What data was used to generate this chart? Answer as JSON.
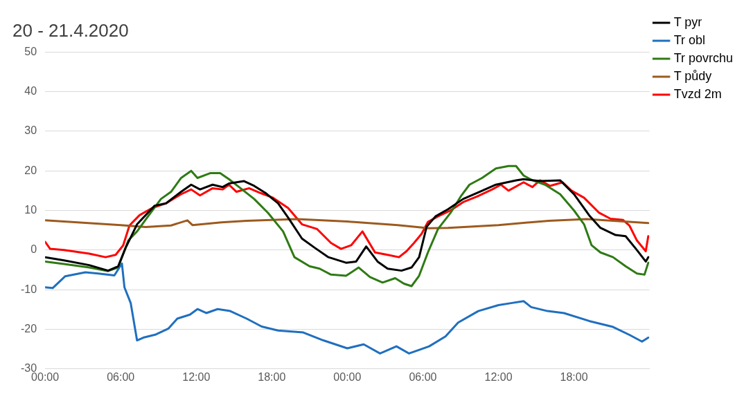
{
  "chart_data": {
    "type": "line",
    "title": "20 - 21.4.2020",
    "xlim": [
      "2020-04-20T00:00",
      "2020-04-22T00:00"
    ],
    "xticks": [
      {
        "value": "2020-04-20T00:00",
        "label": "00:00"
      },
      {
        "value": "2020-04-20T06:00",
        "label": "06:00"
      },
      {
        "value": "2020-04-20T12:00",
        "label": "12:00"
      },
      {
        "value": "2020-04-20T18:00",
        "label": "18:00"
      },
      {
        "value": "2020-04-21T00:00",
        "label": "00:00"
      },
      {
        "value": "2020-04-21T06:00",
        "label": "06:00"
      },
      {
        "value": "2020-04-21T12:00",
        "label": "12:00"
      },
      {
        "value": "2020-04-21T18:00",
        "label": "18:00"
      }
    ],
    "ylim": [
      -30,
      50
    ],
    "yticks": [
      -30,
      -20,
      -10,
      0,
      10,
      20,
      30,
      40,
      50
    ],
    "grid": "y",
    "legend": "right",
    "marker": "none",
    "line_style": "solid",
    "series": [
      {
        "name": "T pyr",
        "color": "#000000",
        "x": [
          "2020-04-20T00:00",
          "2020-04-20T01:30",
          "2020-04-20T03:30",
          "2020-04-20T05:00",
          "2020-04-20T05:48",
          "2020-04-20T06:24",
          "2020-04-20T07:18",
          "2020-04-20T08:42",
          "2020-04-20T09:36",
          "2020-04-20T10:48",
          "2020-04-20T11:36",
          "2020-04-20T12:18",
          "2020-04-20T13:18",
          "2020-04-20T14:06",
          "2020-04-20T14:36",
          "2020-04-20T15:48",
          "2020-04-20T16:36",
          "2020-04-20T17:30",
          "2020-04-20T18:30",
          "2020-04-20T19:18",
          "2020-04-20T20:24",
          "2020-04-20T21:24",
          "2020-04-20T22:30",
          "2020-04-20T23:54",
          "2020-04-21T00:42",
          "2020-04-21T01:30",
          "2020-04-21T02:24",
          "2020-04-21T03:12",
          "2020-04-21T04:18",
          "2020-04-21T05:06",
          "2020-04-21T05:42",
          "2020-04-21T06:18",
          "2020-04-21T07:00",
          "2020-04-21T08:00",
          "2020-04-21T09:12",
          "2020-04-21T10:30",
          "2020-04-21T11:48",
          "2020-04-21T13:24",
          "2020-04-21T14:00",
          "2020-04-21T15:18",
          "2020-04-21T16:54",
          "2020-04-21T18:00",
          "2020-04-21T19:12",
          "2020-04-21T20:06",
          "2020-04-21T21:18",
          "2020-04-21T22:06",
          "2020-04-21T23:00",
          "2020-04-21T23:42",
          "2020-04-21T23:54"
        ],
        "values": [
          -1.8,
          -2.6,
          -3.8,
          -5.2,
          -4.1,
          0.6,
          6.5,
          11.2,
          11.8,
          14.7,
          16.5,
          15.3,
          16.5,
          15.9,
          16.8,
          17.4,
          16.2,
          14.4,
          11.8,
          8.2,
          2.9,
          0.6,
          -1.8,
          -3.2,
          -2.9,
          0.9,
          -2.9,
          -4.7,
          -5.2,
          -4.4,
          -1.8,
          5.9,
          8.5,
          10.3,
          12.9,
          14.7,
          16.5,
          17.6,
          17.9,
          17.4,
          17.6,
          14.1,
          8.8,
          5.6,
          3.8,
          3.5,
          0,
          -2.9,
          -1.8
        ]
      },
      {
        "name": "Tr obl",
        "color": "#1f6fbf",
        "x": [
          "2020-04-20T00:00",
          "2020-04-20T00:36",
          "2020-04-20T01:36",
          "2020-04-20T03:12",
          "2020-04-20T04:12",
          "2020-04-20T05:30",
          "2020-04-20T06:06",
          "2020-04-20T06:18",
          "2020-04-20T06:48",
          "2020-04-20T07:18",
          "2020-04-20T07:48",
          "2020-04-20T08:48",
          "2020-04-20T09:48",
          "2020-04-20T10:30",
          "2020-04-20T11:30",
          "2020-04-20T12:06",
          "2020-04-20T12:48",
          "2020-04-20T13:42",
          "2020-04-20T14:42",
          "2020-04-20T16:00",
          "2020-04-20T17:12",
          "2020-04-20T18:30",
          "2020-04-20T20:30",
          "2020-04-20T22:06",
          "2020-04-21T00:00",
          "2020-04-21T01:18",
          "2020-04-21T02:36",
          "2020-04-21T03:54",
          "2020-04-21T04:54",
          "2020-04-21T06:30",
          "2020-04-21T07:48",
          "2020-04-21T08:48",
          "2020-04-21T10:24",
          "2020-04-21T12:00",
          "2020-04-21T13:00",
          "2020-04-21T14:00",
          "2020-04-21T14:36",
          "2020-04-21T15:54",
          "2020-04-21T17:12",
          "2020-04-21T19:12",
          "2020-04-21T21:06",
          "2020-04-21T22:24",
          "2020-04-21T23:24",
          "2020-04-21T23:54"
        ],
        "values": [
          -9.4,
          -9.6,
          -6.6,
          -5.6,
          -5.9,
          -6.4,
          -3.4,
          -9.4,
          -13.4,
          -22.8,
          -22.1,
          -21.3,
          -19.8,
          -17.3,
          -16.3,
          -14.9,
          -15.9,
          -14.9,
          -15.4,
          -17.3,
          -19.3,
          -20.3,
          -20.8,
          -22.8,
          -24.8,
          -23.8,
          -26.1,
          -24.3,
          -26.1,
          -24.3,
          -21.8,
          -18.3,
          -15.4,
          -13.9,
          -13.4,
          -12.9,
          -14.4,
          -15.4,
          -15.9,
          -17.9,
          -19.4,
          -21.4,
          -23.1,
          -22.1
        ]
      },
      {
        "name": "Tr povrchu",
        "color": "#2e7a14",
        "x": [
          "2020-04-20T00:00",
          "2020-04-20T01:30",
          "2020-04-20T03:30",
          "2020-04-20T05:00",
          "2020-04-20T05:48",
          "2020-04-20T06:36",
          "2020-04-20T07:18",
          "2020-04-20T08:06",
          "2020-04-20T09:12",
          "2020-04-20T10:00",
          "2020-04-20T10:48",
          "2020-04-20T11:36",
          "2020-04-20T12:06",
          "2020-04-20T13:06",
          "2020-04-20T13:54",
          "2020-04-20T14:36",
          "2020-04-20T15:24",
          "2020-04-20T16:36",
          "2020-04-20T17:42",
          "2020-04-20T18:54",
          "2020-04-20T19:48",
          "2020-04-20T21:00",
          "2020-04-20T21:48",
          "2020-04-20T22:42",
          "2020-04-20T23:54",
          "2020-04-21T00:54",
          "2020-04-21T01:48",
          "2020-04-21T02:48",
          "2020-04-21T03:48",
          "2020-04-21T04:30",
          "2020-04-21T05:06",
          "2020-04-21T05:42",
          "2020-04-21T06:24",
          "2020-04-21T07:12",
          "2020-04-21T08:12",
          "2020-04-21T09:00",
          "2020-04-21T09:42",
          "2020-04-21T10:42",
          "2020-04-21T11:48",
          "2020-04-21T12:48",
          "2020-04-21T13:24",
          "2020-04-21T14:00",
          "2020-04-21T14:42",
          "2020-04-21T15:42",
          "2020-04-21T16:54",
          "2020-04-21T18:00",
          "2020-04-21T18:48",
          "2020-04-21T19:24",
          "2020-04-21T20:06",
          "2020-04-21T21:06",
          "2020-04-21T22:06",
          "2020-04-21T23:00",
          "2020-04-21T23:36",
          "2020-04-21T23:54"
        ],
        "values": [
          -2.9,
          -3.5,
          -4.4,
          -5.3,
          -4.4,
          2.4,
          4.7,
          8.2,
          12.9,
          14.7,
          18.2,
          20,
          18.2,
          19.4,
          19.4,
          17.9,
          15.9,
          12.9,
          9.4,
          4.7,
          -1.8,
          -4.1,
          -4.7,
          -6.2,
          -6.5,
          -4.4,
          -6.8,
          -8.2,
          -7.1,
          -8.5,
          -9.1,
          -6.5,
          -0.6,
          5.3,
          9.4,
          13.5,
          16.5,
          18.2,
          20.6,
          21.2,
          21.2,
          18.8,
          17.6,
          16.5,
          14.1,
          10,
          6.5,
          1.2,
          -0.6,
          -1.8,
          -4.1,
          -5.9,
          -6.2,
          -3.2
        ]
      },
      {
        "name": "T půdy",
        "color": "#9c5a1e",
        "x": [
          "2020-04-20T00:00",
          "2020-04-20T03:00",
          "2020-04-20T06:00",
          "2020-04-20T08:00",
          "2020-04-20T10:00",
          "2020-04-20T11:18",
          "2020-04-20T11:42",
          "2020-04-20T14:00",
          "2020-04-20T16:00",
          "2020-04-20T20:00",
          "2020-04-21T00:00",
          "2020-04-21T04:00",
          "2020-04-21T06:30",
          "2020-04-21T08:00",
          "2020-04-21T12:00",
          "2020-04-21T16:00",
          "2020-04-21T19:00",
          "2020-04-21T23:54"
        ],
        "values": [
          7.5,
          6.9,
          6.3,
          5.8,
          6.2,
          7.5,
          6.3,
          7,
          7.4,
          7.8,
          7.2,
          6.3,
          5.5,
          5.6,
          6.3,
          7.4,
          7.8,
          6.8
        ]
      },
      {
        "name": "Tvzd 2m",
        "color": "#ff0000",
        "x": [
          "2020-04-20T00:00",
          "2020-04-20T00:24",
          "2020-04-20T01:30",
          "2020-04-20T03:30",
          "2020-04-20T04:48",
          "2020-04-20T05:36",
          "2020-04-20T06:12",
          "2020-04-20T06:42",
          "2020-04-20T07:30",
          "2020-04-20T08:30",
          "2020-04-20T09:36",
          "2020-04-20T10:48",
          "2020-04-20T11:36",
          "2020-04-20T12:18",
          "2020-04-20T13:18",
          "2020-04-20T14:06",
          "2020-04-20T14:36",
          "2020-04-20T15:12",
          "2020-04-20T16:12",
          "2020-04-20T17:06",
          "2020-04-20T18:06",
          "2020-04-20T19:18",
          "2020-04-20T20:24",
          "2020-04-20T21:36",
          "2020-04-20T22:42",
          "2020-04-20T23:30",
          "2020-04-21T00:18",
          "2020-04-21T01:12",
          "2020-04-21T02:12",
          "2020-04-21T03:12",
          "2020-04-21T04:06",
          "2020-04-21T04:42",
          "2020-04-21T05:18",
          "2020-04-21T05:54",
          "2020-04-21T06:24",
          "2020-04-21T07:12",
          "2020-04-21T08:12",
          "2020-04-21T09:12",
          "2020-04-21T10:18",
          "2020-04-21T11:30",
          "2020-04-21T12:12",
          "2020-04-21T12:48",
          "2020-04-21T14:00",
          "2020-04-21T14:42",
          "2020-04-21T15:18",
          "2020-04-21T16:06",
          "2020-04-21T17:06",
          "2020-04-21T17:48",
          "2020-04-21T18:48",
          "2020-04-21T20:00",
          "2020-04-21T20:54",
          "2020-04-21T21:54",
          "2020-04-21T22:24",
          "2020-04-21T23:00",
          "2020-04-21T23:42",
          "2020-04-21T23:54"
        ],
        "values": [
          2.1,
          0.3,
          0,
          -0.9,
          -1.8,
          -1.2,
          1.2,
          6.2,
          8.8,
          10.6,
          11.8,
          14.1,
          15.3,
          13.8,
          15.6,
          15.3,
          16.5,
          14.7,
          15.6,
          14.4,
          13.2,
          10.6,
          6.5,
          5.3,
          1.8,
          0.3,
          1.2,
          4.7,
          -0.6,
          -1.2,
          -1.8,
          -0.3,
          1.8,
          4.1,
          7.1,
          8.5,
          10,
          12.1,
          13.5,
          15.3,
          16.5,
          15,
          17.1,
          15.9,
          17.6,
          16.2,
          17.1,
          15,
          13.2,
          9.4,
          7.9,
          7.6,
          6.2,
          2.4,
          -0.3,
          3.5
        ]
      }
    ]
  }
}
